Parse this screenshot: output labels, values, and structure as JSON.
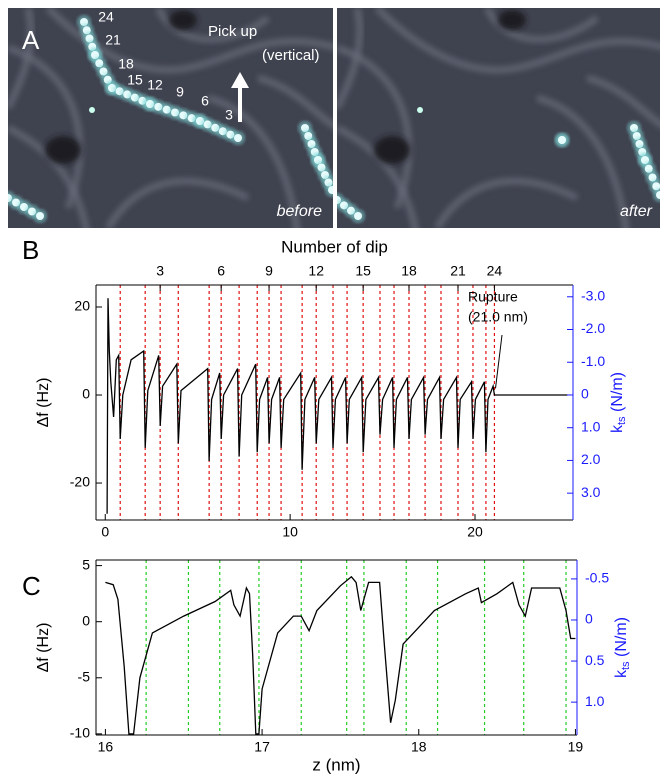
{
  "panel_a": {
    "label": "A",
    "bead_numbers": [
      24,
      21,
      18,
      15,
      12,
      9,
      6,
      3
    ],
    "pick_up": "Pick up",
    "vertical": "(vertical)",
    "before": "before",
    "after": "after"
  },
  "chart_data": [
    {
      "type": "line",
      "panel_label": "B",
      "top_axis_label": "Number of dip",
      "top_ticks": [
        3,
        6,
        9,
        12,
        15,
        18,
        21,
        24
      ],
      "ylabel": "Δf (Hz)",
      "y2label": [
        "k",
        "ts",
        " (N/m)"
      ],
      "color": "#000000",
      "axis_color": "#1a1aff",
      "xlim": [
        -0.5,
        25.3
      ],
      "xticks": [
        0,
        10,
        20
      ],
      "ylim": [
        -28.4,
        25
      ],
      "yticks": [
        -20,
        0,
        20
      ],
      "y2lim": [
        3.82,
        -3.36
      ],
      "y2ticks": [
        {
          "value": -3,
          "label": "-3.0"
        },
        {
          "value": -2,
          "label": "-2.0"
        },
        {
          "value": -1,
          "label": "-1.0"
        },
        0,
        {
          "value": 1,
          "label": "1.0"
        },
        {
          "value": 2,
          "label": "2.0"
        },
        {
          "value": 3,
          "label": "3.0"
        }
      ],
      "dips": [
        0.81,
        2.16,
        2.97,
        3.95,
        5.62,
        6.27,
        7.24,
        8.22,
        8.86,
        9.51,
        10.65,
        11.41,
        12.32,
        13.08,
        13.95,
        14.86,
        15.62,
        16.43,
        17.3,
        18.16,
        19.08,
        19.89,
        20.59,
        21.05
      ],
      "dip_color": "#e01010",
      "annotation": [
        "Rupture",
        "(21.0 nm)"
      ],
      "annotation_x": 21.0,
      "x": [
        0.1,
        0.15,
        0.22,
        0.3,
        0.45,
        0.6,
        0.73,
        0.81,
        0.95,
        1.4,
        2.08,
        2.16,
        2.3,
        2.89,
        2.97,
        3.1,
        3.87,
        3.95,
        4.1,
        5.54,
        5.62,
        5.75,
        6.19,
        6.27,
        6.4,
        7.16,
        7.24,
        7.38,
        8.14,
        8.22,
        8.35,
        8.78,
        8.86,
        9.0,
        9.43,
        9.51,
        9.65,
        10.57,
        10.65,
        10.8,
        11.33,
        11.41,
        11.55,
        12.24,
        12.32,
        12.45,
        13.0,
        13.08,
        13.2,
        13.87,
        13.95,
        14.1,
        14.78,
        14.86,
        15.0,
        15.54,
        15.62,
        15.75,
        16.35,
        16.43,
        16.56,
        17.22,
        17.3,
        17.43,
        18.08,
        18.16,
        18.3,
        19.0,
        19.08,
        19.2,
        19.81,
        19.89,
        20.02,
        20.51,
        20.59,
        20.7,
        20.98,
        21.05,
        21.2,
        25.0
      ],
      "values": [
        -27,
        22,
        10,
        3,
        -5,
        8,
        9,
        -10,
        0,
        8,
        10,
        -12,
        1,
        9,
        -7,
        2,
        7,
        -11,
        1,
        6,
        -15,
        -1,
        5,
        -10,
        0,
        6,
        -14,
        0,
        7,
        -13,
        -1,
        4,
        -11,
        -1,
        4,
        -12,
        -1,
        5,
        -17,
        -1,
        4,
        -11,
        -1,
        4,
        -12,
        -1,
        4,
        -11,
        -1,
        4,
        -13,
        -1,
        4,
        -9,
        -1,
        4,
        -12,
        -1,
        4,
        -10,
        -1,
        4,
        -9,
        -1,
        4,
        -10,
        -1,
        4,
        -12,
        -1,
        3,
        -10,
        -1,
        3,
        -13,
        -1,
        2,
        0,
        0,
        0
      ]
    },
    {
      "type": "line",
      "panel_label": "C",
      "xlabel": "z (nm)",
      "ylabel": "Δf (Hz)",
      "y2label": [
        "k",
        "ts",
        " (N/m)"
      ],
      "color": "#000000",
      "axis_color": "#1a1aff",
      "xlim": [
        15.94,
        19.01
      ],
      "xticks": [
        16,
        17,
        18,
        19
      ],
      "ylim": [
        -10.1,
        5.5
      ],
      "yticks": [
        -10,
        -5,
        0,
        5
      ],
      "y2lim": [
        1.4,
        -0.73
      ],
      "y2ticks": [
        -0.5,
        0,
        0.5,
        {
          "value": 1,
          "label": "1.0"
        }
      ],
      "dips": [
        16.26,
        16.53,
        16.73,
        16.98,
        17.25,
        17.54,
        17.65,
        17.92,
        18.12,
        18.42,
        18.67,
        18.94
      ],
      "dip_color": "#22cc22",
      "x": [
        16.0,
        16.05,
        16.08,
        16.12,
        16.15,
        16.18,
        16.22,
        16.3,
        16.5,
        16.7,
        16.8,
        16.82,
        16.86,
        16.9,
        16.92,
        16.94,
        16.96,
        16.98,
        17.0,
        17.1,
        17.2,
        17.25,
        17.3,
        17.35,
        17.5,
        17.57,
        17.6,
        17.63,
        17.68,
        17.75,
        17.78,
        17.82,
        17.85,
        17.9,
        18.0,
        18.1,
        18.3,
        18.38,
        18.4,
        18.5,
        18.6,
        18.64,
        18.68,
        18.72,
        18.9,
        18.94,
        18.97,
        19.0
      ],
      "values": [
        3.5,
        3.3,
        2,
        -4,
        -10,
        -10,
        -5,
        -1,
        0.5,
        1.8,
        2.8,
        1.5,
        0.5,
        3,
        2.5,
        -3,
        -10,
        -10,
        -6,
        -1,
        0.5,
        0.5,
        -0.8,
        1,
        3.2,
        4,
        3.5,
        1,
        3.5,
        3.5,
        -2,
        -9,
        -7,
        -2,
        -0.5,
        1,
        2.5,
        3,
        1.7,
        2.5,
        3.5,
        1.5,
        0.5,
        3,
        3,
        1,
        -1.5,
        -1.5
      ]
    }
  ]
}
